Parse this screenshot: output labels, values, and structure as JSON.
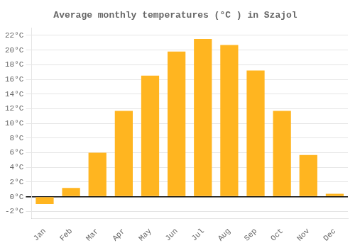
{
  "chart_data": {
    "type": "bar",
    "title": "Average monthly temperatures (°C ) in Szajol",
    "categories": [
      "Jan",
      "Feb",
      "Mar",
      "Apr",
      "May",
      "Jun",
      "Jul",
      "Aug",
      "Sep",
      "Oct",
      "Nov",
      "Dec"
    ],
    "values": [
      -1.0,
      1.2,
      6.0,
      11.7,
      16.5,
      19.8,
      21.5,
      20.7,
      17.2,
      11.7,
      5.7,
      0.4
    ],
    "color": "#FFB520",
    "ylim": [
      -3,
      23
    ],
    "yticks": [
      {
        "value": -2,
        "label": "-2°C"
      },
      {
        "value": 0,
        "label": "0°C"
      },
      {
        "value": 2,
        "label": "2°C"
      },
      {
        "value": 4,
        "label": "4°C"
      },
      {
        "value": 6,
        "label": "6°C"
      },
      {
        "value": 8,
        "label": "8°C"
      },
      {
        "value": 10,
        "label": "10°C"
      },
      {
        "value": 12,
        "label": "12°C"
      },
      {
        "value": 14,
        "label": "14°C"
      },
      {
        "value": 16,
        "label": "16°C"
      },
      {
        "value": 18,
        "label": "18°C"
      },
      {
        "value": 20,
        "label": "20°C"
      },
      {
        "value": 22,
        "label": "22°C"
      }
    ],
    "grid": true
  }
}
